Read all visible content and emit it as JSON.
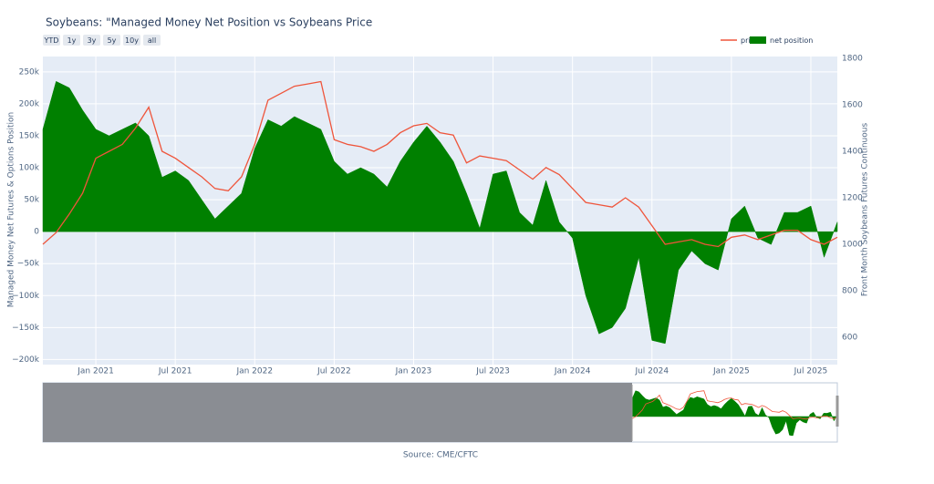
{
  "range_buttons": [
    "YTD",
    "1y",
    "3y",
    "5y",
    "10y",
    "all"
  ],
  "chart_data": {
    "type": "line",
    "title": "Soybeans: \"Managed Money Net Position vs Soybeans Price",
    "ylabel": "Managed Money Net Futures & Options Position",
    "y2label": "Front Month Soybeans Futures Continuous",
    "source": "Source: CME/CFTC",
    "legend": "top-right",
    "grid": true,
    "xlim": [
      "2020-09",
      "2025-09"
    ],
    "xticks": [
      {
        "value": "2021-01",
        "label": "Jan 2021"
      },
      {
        "value": "2021-07",
        "label": "Jul 2021"
      },
      {
        "value": "2022-01",
        "label": "Jan 2022"
      },
      {
        "value": "2022-07",
        "label": "Jul 2022"
      },
      {
        "value": "2023-01",
        "label": "Jan 2023"
      },
      {
        "value": "2023-07",
        "label": "Jul 2023"
      },
      {
        "value": "2024-01",
        "label": "Jan 2024"
      },
      {
        "value": "2024-07",
        "label": "Jul 2024"
      },
      {
        "value": "2025-01",
        "label": "Jan 2025"
      },
      {
        "value": "2025-07",
        "label": "Jul 2025"
      }
    ],
    "ylim": [
      -208000,
      274000
    ],
    "yticks": [
      {
        "value": 250000,
        "label": "250k"
      },
      {
        "value": 200000,
        "label": "200k"
      },
      {
        "value": 150000,
        "label": "150k"
      },
      {
        "value": 100000,
        "label": "100k"
      },
      {
        "value": 50000,
        "label": "50k"
      },
      0,
      {
        "value": -50000,
        "label": "−50k"
      },
      {
        "value": -100000,
        "label": "−100k"
      },
      {
        "value": -150000,
        "label": "−150k"
      },
      {
        "value": -200000,
        "label": "−200k"
      }
    ],
    "y2lim": [
      482,
      1808
    ],
    "y2ticks": [
      600,
      800,
      1000,
      1200,
      1400,
      1600,
      1800
    ],
    "x": [
      "2020-09",
      "2020-10",
      "2020-11",
      "2020-12",
      "2021-01",
      "2021-02",
      "2021-03",
      "2021-04",
      "2021-05",
      "2021-06",
      "2021-07",
      "2021-08",
      "2021-09",
      "2021-10",
      "2021-11",
      "2021-12",
      "2022-01",
      "2022-02",
      "2022-03",
      "2022-04",
      "2022-05",
      "2022-06",
      "2022-07",
      "2022-08",
      "2022-09",
      "2022-10",
      "2022-11",
      "2022-12",
      "2023-01",
      "2023-02",
      "2023-03",
      "2023-04",
      "2023-05",
      "2023-06",
      "2023-07",
      "2023-08",
      "2023-09",
      "2023-10",
      "2023-11",
      "2023-12",
      "2024-01",
      "2024-02",
      "2024-03",
      "2024-04",
      "2024-05",
      "2024-06",
      "2024-07",
      "2024-08",
      "2024-09",
      "2024-10",
      "2024-11",
      "2024-12",
      "2025-01",
      "2025-02",
      "2025-03",
      "2025-04",
      "2025-05",
      "2025-06",
      "2025-07",
      "2025-08",
      "2025-09"
    ],
    "series": [
      {
        "name": "price",
        "color": "#ef553b",
        "kind": "line",
        "axis": "y2",
        "values": [
          1000,
          1050,
          1130,
          1220,
          1370,
          1400,
          1430,
          1500,
          1590,
          1400,
          1370,
          1330,
          1290,
          1240,
          1230,
          1290,
          1430,
          1620,
          1650,
          1680,
          1690,
          1700,
          1450,
          1430,
          1420,
          1400,
          1430,
          1480,
          1510,
          1520,
          1480,
          1470,
          1350,
          1380,
          1370,
          1360,
          1320,
          1280,
          1330,
          1300,
          1240,
          1180,
          1170,
          1160,
          1200,
          1160,
          1080,
          1000,
          1010,
          1020,
          1000,
          990,
          1030,
          1040,
          1020,
          1040,
          1060,
          1060,
          1020,
          1000,
          1030
        ]
      },
      {
        "name": "net position",
        "color": "#008000",
        "kind": "area",
        "values": [
          160000,
          235000,
          225000,
          190000,
          160000,
          150000,
          160000,
          170000,
          150000,
          85000,
          95000,
          80000,
          50000,
          20000,
          40000,
          60000,
          130000,
          175000,
          165000,
          180000,
          170000,
          160000,
          110000,
          90000,
          100000,
          90000,
          70000,
          110000,
          140000,
          165000,
          140000,
          110000,
          60000,
          5000,
          90000,
          95000,
          30000,
          10000,
          80000,
          15000,
          -10000,
          -100000,
          -160000,
          -150000,
          -120000,
          -40000,
          -170000,
          -175000,
          -60000,
          -30000,
          -50000,
          -60000,
          20000,
          40000,
          -10000,
          -20000,
          30000,
          30000,
          40000,
          -40000,
          15000
        ]
      }
    ]
  }
}
